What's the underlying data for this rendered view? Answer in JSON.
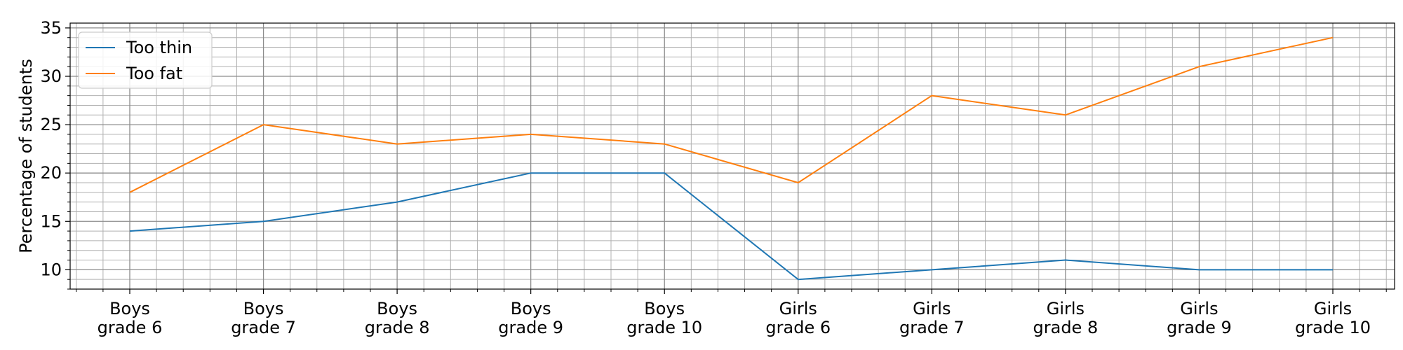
{
  "chart_data": {
    "type": "line",
    "title": "",
    "xlabel": "",
    "ylabel": "Percentage of students",
    "ylim": [
      8,
      35.5
    ],
    "yticks": [
      10,
      15,
      20,
      25,
      30,
      35
    ],
    "ytick_labels": [
      "10",
      "15",
      "20",
      "25",
      "30",
      "35"
    ],
    "y_minor_step": 1,
    "grid": true,
    "legend_position": "top-left",
    "categories": [
      [
        "Boys",
        "grade 6"
      ],
      [
        "Boys",
        "grade 7"
      ],
      [
        "Boys",
        "grade 8"
      ],
      [
        "Boys",
        "grade 9"
      ],
      [
        "Boys",
        "grade 10"
      ],
      [
        "Girls",
        "grade 6"
      ],
      [
        "Girls",
        "grade 7"
      ],
      [
        "Girls",
        "grade 8"
      ],
      [
        "Girls",
        "grade 9"
      ],
      [
        "Girls",
        "grade 10"
      ]
    ],
    "series": [
      {
        "name": "Too thin",
        "color": "#1f77b4",
        "values": [
          14,
          15,
          17,
          20,
          20,
          9,
          10,
          11,
          10,
          10
        ]
      },
      {
        "name": "Too fat",
        "color": "#ff7f0e",
        "values": [
          18,
          25,
          23,
          24,
          23,
          19,
          28,
          26,
          31,
          34
        ]
      }
    ]
  }
}
